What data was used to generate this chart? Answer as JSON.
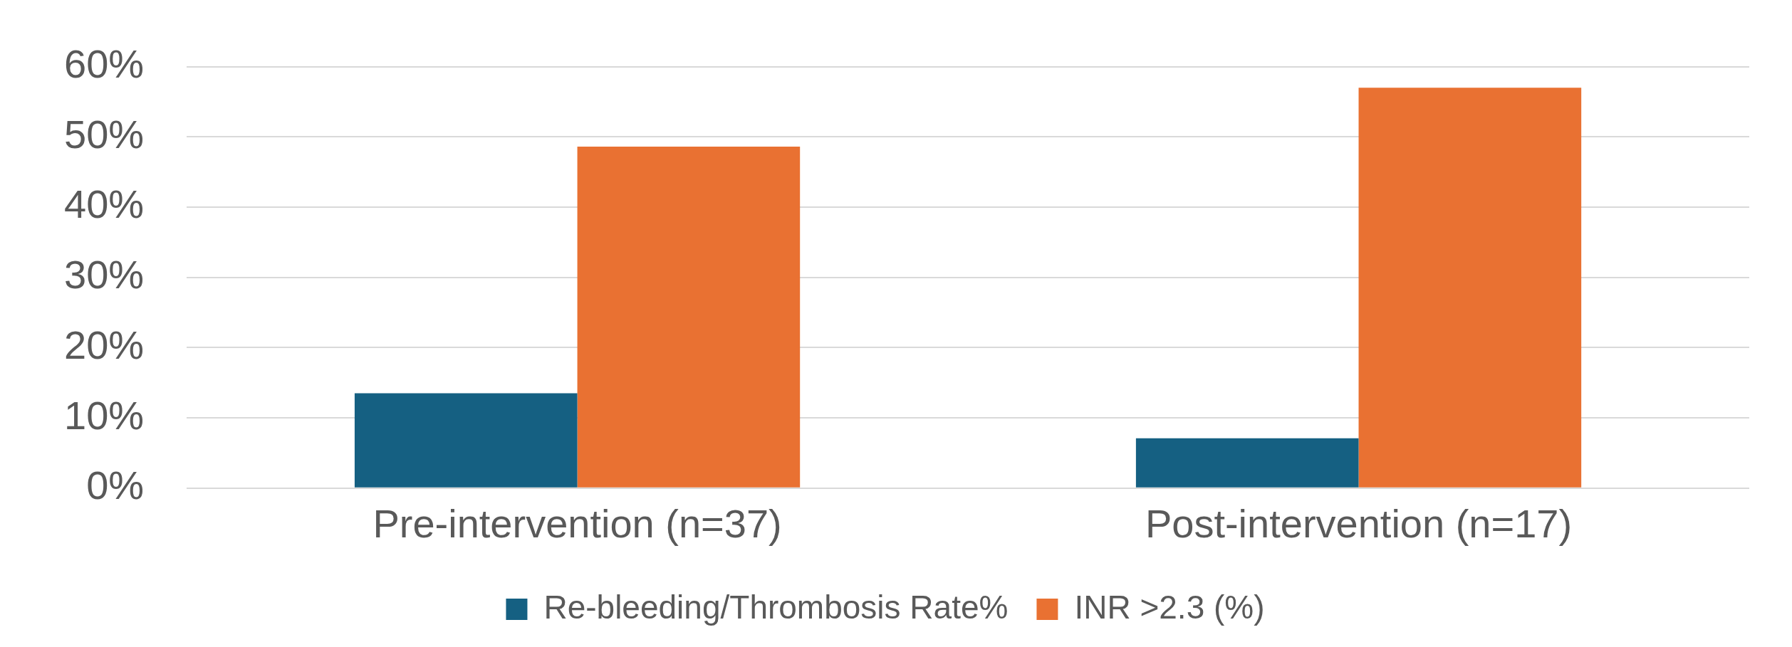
{
  "chart_data": {
    "type": "bar",
    "categories": [
      "Pre-intervention (n=37)",
      "Post-intervention (n=17)"
    ],
    "series": [
      {
        "name": "Re-bleeding/Thrombosis Rate%",
        "color": "#156082",
        "values": [
          13.5,
          7.1
        ]
      },
      {
        "name": "INR >2.3 (%)",
        "color": "#e97132",
        "values": [
          48.6,
          57.0
        ]
      }
    ],
    "ylim": [
      0,
      60
    ],
    "yticks": [
      {
        "value": 0,
        "label": "0%"
      },
      {
        "value": 10,
        "label": "10%"
      },
      {
        "value": 20,
        "label": "20%"
      },
      {
        "value": 30,
        "label": "30%"
      },
      {
        "value": 40,
        "label": "40%"
      },
      {
        "value": 50,
        "label": "50%"
      },
      {
        "value": 60,
        "label": "60%"
      }
    ],
    "grid": "y",
    "legend": "bottom"
  }
}
